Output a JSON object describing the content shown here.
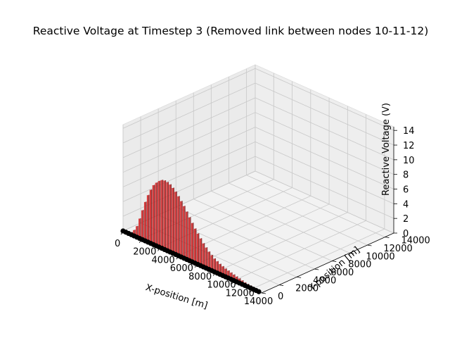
{
  "chart_data": {
    "type": "bar3d",
    "title": "Reactive Voltage at Timestep 3 (Removed link between nodes 10-11-12)",
    "xlabel": "X-position [m]",
    "ylabel": "Y-position [m]",
    "zlabel": "Reactive Voltage (V)",
    "x_ticks": [
      "0",
      "2000",
      "4000",
      "6000",
      "8000",
      "10000",
      "12000",
      "14000"
    ],
    "y_ticks": [
      "0",
      "2000",
      "4000",
      "6000",
      "8000",
      "10000",
      "12000",
      "14000"
    ],
    "z_ticks": [
      "0",
      "2",
      "4",
      "6",
      "8",
      "10",
      "12",
      "14"
    ],
    "xlim": [
      0,
      15000
    ],
    "ylim": [
      0,
      15000
    ],
    "zlim": [
      0,
      14.5
    ],
    "grid": true,
    "bar_color": "#d62728",
    "node_color": "#000000",
    "node_y": 0,
    "x": [
      0,
      300,
      600,
      900,
      1200,
      1500,
      1800,
      2100,
      2400,
      2700,
      3000,
      3300,
      3600,
      3900,
      4200,
      4500,
      4800,
      5100,
      5400,
      5700,
      6000,
      6300,
      6600,
      6900,
      7200,
      7500,
      7800,
      8100,
      8400,
      8700,
      9000,
      9300,
      9600,
      9900,
      10200,
      10500,
      10800,
      11100,
      11400,
      11700,
      12000,
      12300,
      12600,
      12900,
      13200,
      13500,
      13800,
      14100,
      14400,
      14700
    ],
    "values": [
      0.0,
      0.0,
      0.0,
      0.3,
      0.8,
      1.5,
      2.7,
      4.0,
      5.3,
      6.4,
      7.3,
      8.1,
      8.6,
      9.0,
      9.3,
      9.4,
      9.35,
      9.2,
      8.9,
      8.55,
      8.1,
      7.6,
      7.1,
      6.5,
      5.9,
      5.3,
      4.7,
      4.2,
      3.7,
      3.2,
      2.8,
      2.4,
      2.1,
      1.8,
      1.6,
      1.4,
      1.25,
      1.1,
      1.0,
      0.9,
      0.8,
      0.7,
      0.6,
      0.5,
      0.4,
      0.35,
      0.3,
      0.25,
      0.2,
      0.15
    ]
  }
}
